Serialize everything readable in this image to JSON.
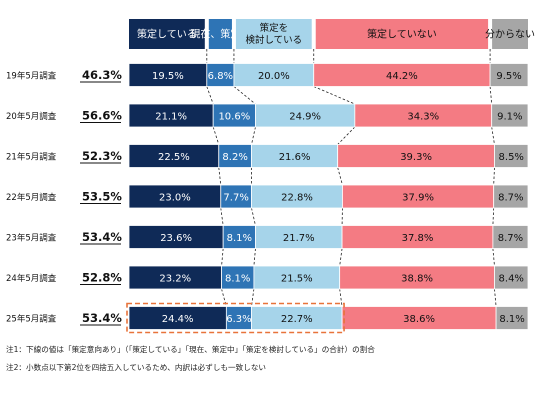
{
  "colors": {
    "series": [
      "#0f2a57",
      "#2e74b5",
      "#a6d4ea",
      "#f47b83",
      "#a6a6a6"
    ],
    "series_text": [
      "#ffffff",
      "#ffffff",
      "#111111",
      "#111111",
      "#111111"
    ],
    "highlight": "#e8733a",
    "connector": "#222222",
    "background": "#ffffff"
  },
  "chart_data": {
    "type": "bar",
    "orientation": "horizontal",
    "stacked": true,
    "percent_scale": true,
    "legend_position": "top",
    "categories": [
      "19年5月調査",
      "20年5月調査",
      "21年5月調査",
      "22年5月調査",
      "23年5月調査",
      "24年5月調査",
      "25年5月調査"
    ],
    "underlined_values": [
      "46.3%",
      "56.6%",
      "52.3%",
      "53.5%",
      "53.4%",
      "52.8%",
      "53.4%"
    ],
    "series": [
      {
        "name": "策定している",
        "values": [
          19.5,
          21.1,
          22.5,
          23.0,
          23.6,
          23.2,
          24.4
        ],
        "labels": [
          "19.5%",
          "21.1%",
          "22.5%",
          "23.0%",
          "23.6%",
          "23.2%",
          "24.4%"
        ]
      },
      {
        "name": "現在、策定中",
        "values": [
          6.8,
          10.6,
          8.2,
          7.7,
          8.1,
          8.1,
          6.3
        ],
        "labels": [
          "6.8%",
          "10.6%",
          "8.2%",
          "7.7%",
          "8.1%",
          "8.1%",
          "6.3%"
        ]
      },
      {
        "name": "策定を検討している",
        "legend_lines": [
          "策定を",
          "検討している"
        ],
        "values": [
          20.0,
          24.9,
          21.6,
          22.8,
          21.7,
          21.5,
          22.7
        ],
        "labels": [
          "20.0%",
          "24.9%",
          "21.6%",
          "22.8%",
          "21.7%",
          "21.5%",
          "22.7%"
        ]
      },
      {
        "name": "策定していない",
        "values": [
          44.2,
          34.3,
          39.3,
          37.9,
          37.8,
          38.8,
          38.6
        ],
        "labels": [
          "44.2%",
          "34.3%",
          "39.3%",
          "37.9%",
          "37.8%",
          "38.8%",
          "38.6%"
        ]
      },
      {
        "name": "分からない",
        "values": [
          9.5,
          9.1,
          8.5,
          8.7,
          8.7,
          8.4,
          8.1
        ],
        "labels": [
          "9.5%",
          "9.1%",
          "8.5%",
          "8.7%",
          "8.7%",
          "8.4%",
          "8.1%"
        ]
      }
    ],
    "highlighted_category": "25年5月調査",
    "highlighted_series": [
      "策定している",
      "現在、策定中",
      "策定を検討している"
    ]
  },
  "notes": {
    "note1": "注1：下線の値は「策定意向あり」（「策定している」「現在、策定中」「策定を検討している」の合計）の割合",
    "note2": "注2：小数点以下第2位を四捨五入しているため、内訳は必ずしも一致しない"
  }
}
